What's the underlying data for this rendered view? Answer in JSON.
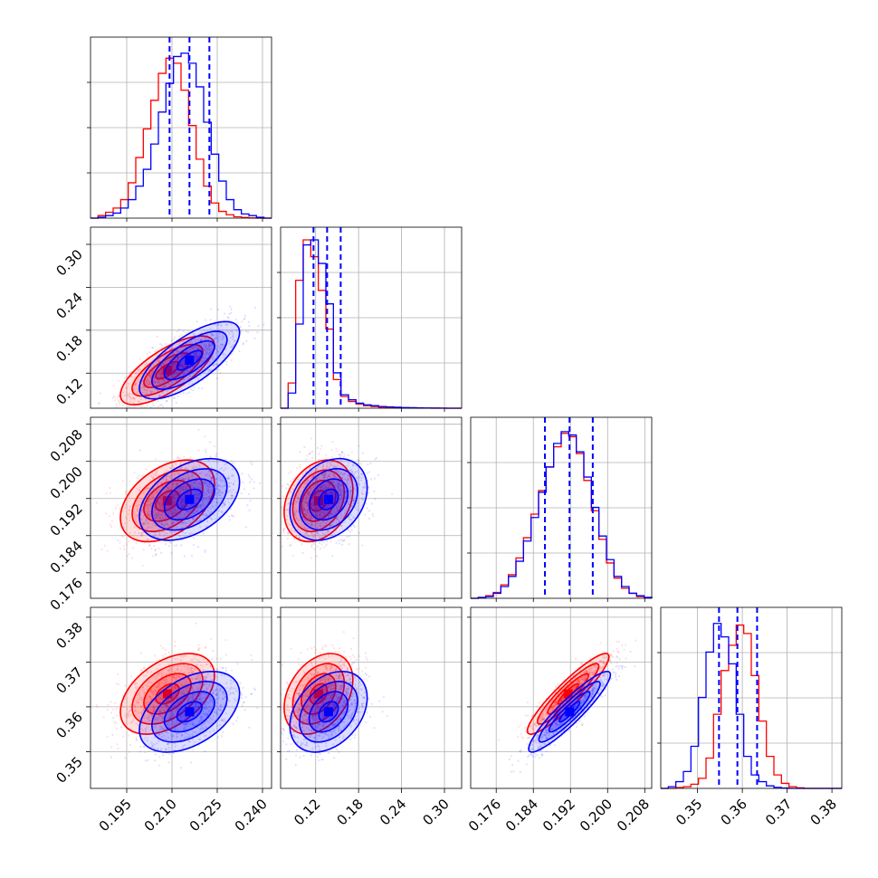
{
  "chart_data": {
    "type": "corner",
    "colors": {
      "series_a": "#0000ff",
      "series_b": "#ff0000"
    },
    "grid": true,
    "parameters": [
      {
        "range": [
          0.183,
          0.243
        ],
        "ticks": [
          "0.195",
          "0.210",
          "0.225",
          "0.240"
        ],
        "tick_values": [
          0.195,
          0.21,
          0.225,
          0.24
        ]
      },
      {
        "range": [
          0.071,
          0.324
        ],
        "ticks": [
          "0.12",
          "0.18",
          "0.24",
          "0.30"
        ],
        "tick_values": [
          0.12,
          0.18,
          0.24,
          0.3
        ]
      },
      {
        "range": [
          0.1705,
          0.2095
        ],
        "ticks": [
          "0.176",
          "0.184",
          "0.192",
          "0.200",
          "0.208"
        ],
        "tick_values": [
          0.176,
          0.184,
          0.192,
          0.2,
          0.208
        ]
      },
      {
        "range": [
          0.3418,
          0.3822
        ],
        "ticks": [
          "0.35",
          "0.36",
          "0.37",
          "0.38"
        ],
        "tick_values": [
          0.35,
          0.36,
          0.37,
          0.38
        ]
      }
    ],
    "quantiles": [
      [
        0.2092,
        0.2158,
        0.2224
      ],
      [
        0.117,
        0.136,
        0.155
      ],
      [
        0.1865,
        0.1918,
        0.1968
      ],
      [
        0.3548,
        0.3589,
        0.3633
      ]
    ],
    "histograms": [
      {
        "series_a": [
          0,
          0.5,
          1.5,
          3,
          6,
          11,
          19,
          29,
          44,
          63,
          80,
          96,
          98,
          92,
          78,
          57,
          38,
          22,
          11,
          5,
          2.5,
          1.5,
          0.5,
          0
        ],
        "series_b": [
          0,
          1.5,
          3.5,
          6,
          11,
          21,
          36,
          53,
          70,
          86,
          95,
          92,
          76,
          55,
          35,
          19,
          9,
          4,
          2,
          0.8,
          0.4,
          0.1,
          0,
          0
        ]
      },
      {
        "series_a": [
          0,
          9,
          50,
          97,
          100,
          86,
          62,
          21,
          8,
          5,
          3,
          2,
          1.5,
          1,
          0.8,
          0.6,
          0.4,
          0.3,
          0.2,
          0.15,
          0.1,
          0.05,
          0,
          0
        ],
        "series_b": [
          0,
          15,
          76,
          100,
          90,
          70,
          47,
          17,
          7,
          4,
          2.5,
          1.5,
          1,
          0.6,
          0.4,
          0.3,
          0.2,
          0.15,
          0.1,
          0.05,
          0,
          0,
          0,
          0
        ]
      },
      {
        "series_a": [
          0,
          0.5,
          1,
          3,
          7,
          13,
          22,
          34,
          48,
          63,
          78,
          92,
          99,
          97,
          87,
          72,
          54,
          37,
          23,
          13,
          7,
          3,
          1.5,
          0.5
        ],
        "series_b": [
          0,
          0.5,
          1.5,
          3.5,
          8,
          14,
          24,
          36,
          50,
          64,
          78,
          90,
          98,
          96,
          86,
          70,
          52,
          35,
          21,
          12,
          6,
          3,
          1,
          0.5
        ]
      },
      {
        "series_a": [
          0,
          1,
          4,
          10,
          25,
          54,
          81,
          98,
          90,
          74,
          44,
          19,
          8,
          4,
          1.5,
          0.6,
          0.2,
          0,
          0,
          0,
          0,
          0,
          0,
          0
        ],
        "series_b": [
          0,
          0,
          0.5,
          1,
          2.5,
          6,
          18,
          44,
          70,
          85,
          97,
          92,
          67,
          40,
          19,
          8,
          3,
          1,
          0.3,
          0,
          0,
          0,
          0,
          0
        ]
      }
    ],
    "pairs": [
      {
        "x": 0,
        "y": 1,
        "series_a": {
          "mean": [
            0.2158,
            0.138
          ],
          "sd": [
            0.0083,
            0.027
          ],
          "rho": 0.72
        },
        "series_b": {
          "mean": [
            0.2085,
            0.124
          ],
          "sd": [
            0.0078,
            0.024
          ],
          "rho": 0.72
        }
      },
      {
        "x": 0,
        "y": 2,
        "series_a": {
          "mean": [
            0.2158,
            0.1918
          ],
          "sd": [
            0.0083,
            0.0044
          ],
          "rho": 0.42
        },
        "series_b": {
          "mean": [
            0.2085,
            0.1915
          ],
          "sd": [
            0.0078,
            0.0044
          ],
          "rho": 0.42
        }
      },
      {
        "x": 1,
        "y": 2,
        "series_a": {
          "mean": [
            0.138,
            0.1918
          ],
          "sd": [
            0.027,
            0.0044
          ],
          "rho": 0.28
        },
        "series_b": {
          "mean": [
            0.124,
            0.1915
          ],
          "sd": [
            0.024,
            0.0044
          ],
          "rho": 0.28
        }
      },
      {
        "x": 0,
        "y": 3,
        "series_a": {
          "mean": [
            0.2158,
            0.3589
          ],
          "sd": [
            0.0083,
            0.0045
          ],
          "rho": 0.45
        },
        "series_b": {
          "mean": [
            0.2085,
            0.3629
          ],
          "sd": [
            0.0078,
            0.0045
          ],
          "rho": 0.45
        }
      },
      {
        "x": 1,
        "y": 3,
        "series_a": {
          "mean": [
            0.138,
            0.3589
          ],
          "sd": [
            0.027,
            0.0045
          ],
          "rho": 0.35
        },
        "series_b": {
          "mean": [
            0.124,
            0.3629
          ],
          "sd": [
            0.024,
            0.0045
          ],
          "rho": 0.35
        }
      },
      {
        "x": 2,
        "y": 3,
        "series_a": {
          "mean": [
            0.1918,
            0.3589
          ],
          "sd": [
            0.0044,
            0.0045
          ],
          "rho": 0.92
        },
        "series_b": {
          "mean": [
            0.1915,
            0.3629
          ],
          "sd": [
            0.0044,
            0.0045
          ],
          "rho": 0.92
        }
      }
    ]
  }
}
